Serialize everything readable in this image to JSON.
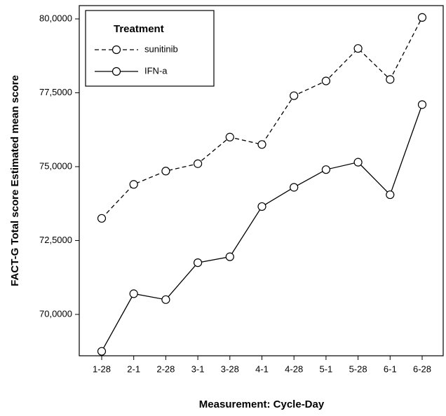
{
  "chart_data": {
    "type": "line",
    "y_label": "FACT-G Total score Estimated mean score",
    "x_label": "Measurement: Cycle-Day",
    "legend_title": "Treatment",
    "legend": "top-left",
    "categories": [
      "1-28",
      "2-1",
      "2-28",
      "3-1",
      "3-28",
      "4-1",
      "4-28",
      "5-1",
      "5-28",
      "6-1",
      "6-28"
    ],
    "series": [
      {
        "name": "sunitinib",
        "color": "#000000",
        "dash": true,
        "values": [
          73.25,
          74.4,
          74.85,
          75.1,
          76.0,
          75.75,
          77.4,
          77.9,
          79.0,
          77.95,
          80.05
        ]
      },
      {
        "name": "IFN-a",
        "color": "#000000",
        "dash": false,
        "values": [
          68.75,
          70.7,
          70.5,
          71.75,
          71.95,
          73.65,
          74.3,
          74.9,
          75.15,
          74.05,
          77.1
        ]
      }
    ],
    "ylim": [
      68.6,
      80.45
    ],
    "yticks": [
      {
        "value": 70,
        "label": "70,0000"
      },
      {
        "value": 72.5,
        "label": "72,5000"
      },
      {
        "value": 75,
        "label": "75,0000"
      },
      {
        "value": 77.5,
        "label": "77,5000"
      },
      {
        "value": 80,
        "label": "80,0000"
      }
    ]
  }
}
